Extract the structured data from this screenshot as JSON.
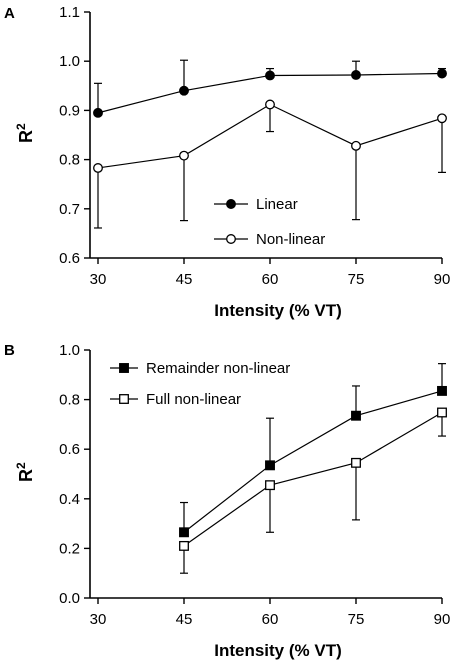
{
  "chart_data": [
    {
      "type": "line",
      "panel_label": "A",
      "xlabel": "Intensity (% VT)",
      "ylabel": "R",
      "ylabel_superscript": "2",
      "x": [
        30,
        45,
        60,
        75,
        90
      ],
      "x_ticks": [
        "30",
        "45",
        "60",
        "75",
        "90"
      ],
      "xlim": [
        30,
        90
      ],
      "y_ticks": [
        "0.6",
        "0.7",
        "0.8",
        "0.9",
        "1.0",
        "1.1"
      ],
      "ylim": [
        0.6,
        1.1
      ],
      "grid": false,
      "legend_position": "bottom-center",
      "series": [
        {
          "name": "Linear",
          "marker": "filled-circle",
          "values": [
            0.895,
            0.94,
            0.971,
            0.972,
            0.975
          ],
          "error": [
            0.06,
            0.062,
            0.014,
            0.028,
            0.01
          ]
        },
        {
          "name": "Non-linear",
          "marker": "open-circle",
          "values": [
            0.783,
            0.808,
            0.912,
            0.828,
            0.884
          ],
          "error_upper": [
            null,
            null,
            null,
            null,
            null
          ],
          "error_lower": [
            0.122,
            0.132,
            0.055,
            0.15,
            0.11
          ]
        }
      ]
    },
    {
      "type": "line",
      "panel_label": "B",
      "xlabel": "Intensity (% VT)",
      "ylabel": "R",
      "ylabel_superscript": "2",
      "x": [
        30,
        45,
        60,
        75,
        90
      ],
      "x_ticks": [
        "30",
        "45",
        "60",
        "75",
        "90"
      ],
      "xlim": [
        30,
        90
      ],
      "y_ticks": [
        "0.0",
        "0.2",
        "0.4",
        "0.6",
        "0.8",
        "1.0"
      ],
      "ylim": [
        0,
        1.0
      ],
      "grid": false,
      "legend_position": "top-left",
      "series": [
        {
          "name": "Remainder non-linear",
          "marker": "filled-square",
          "values": [
            null,
            0.265,
            0.535,
            0.735,
            0.835
          ],
          "error": [
            null,
            0.12,
            0.19,
            0.12,
            0.11
          ]
        },
        {
          "name": "Full non-linear",
          "marker": "open-square",
          "values": [
            null,
            0.21,
            0.455,
            0.545,
            0.748
          ],
          "error": [
            null,
            0.11,
            0.19,
            0.23,
            0.095
          ]
        }
      ]
    }
  ]
}
